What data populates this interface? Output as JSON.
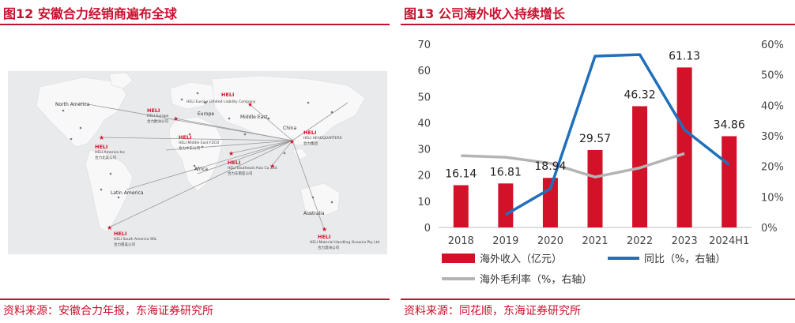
{
  "left": {
    "title": "图12  安徽合力经销商遍布全球",
    "source": "资料来源：安徽合力年报，东海证券研究所",
    "map": {
      "regions": [
        "North America",
        "Europe",
        "Middle East",
        "Africa",
        "Latin America",
        "Australia",
        "China"
      ],
      "brand": "HELI",
      "hubs": [
        {
          "en": "HELI Europe Limited Liability Company",
          "cn": ""
        },
        {
          "en": "HELI Europe",
          "cn": "合力欧洲公司"
        },
        {
          "en": "HELI America Inc",
          "cn": "合力北美公司"
        },
        {
          "en": "HELI Middle East FZCO",
          "cn": "合力中东公司"
        },
        {
          "en": "HELI HEADQUARTERS",
          "cn": "合力集团"
        },
        {
          "en": "HELI Southeast Asia Co.,Ltd.",
          "cn": "合力东南亚公司"
        },
        {
          "en": "HELI South America SRL",
          "cn": "合力南美公司"
        },
        {
          "en": "HELI Material Handling Oceania Pty Ltd",
          "cn": "合力澳洲公司"
        }
      ]
    }
  },
  "right": {
    "title": "图13  公司海外收入持续增长",
    "source": "资料来源：同花顺，东海证券研究所",
    "colors": {
      "bar": "#d3122a",
      "yoy": "#1f6fba",
      "margin": "#b4b4b4"
    },
    "chart_data": {
      "type": "bar",
      "categories": [
        "2018",
        "2019",
        "2020",
        "2021",
        "2022",
        "2023",
        "2024H1"
      ],
      "series": [
        {
          "name": "海外收入（亿元）",
          "type": "bar",
          "axis": "left",
          "values": [
            16.14,
            16.81,
            18.94,
            29.57,
            46.32,
            61.13,
            34.86
          ],
          "labels": [
            "16.14",
            "16.81",
            "18.94",
            "29.57",
            "46.32",
            "61.13",
            "34.86"
          ]
        },
        {
          "name": "同比（%，右轴）",
          "type": "line",
          "axis": "right",
          "values": [
            null,
            4.2,
            12.7,
            56.1,
            56.6,
            32.0,
            20.5
          ]
        },
        {
          "name": "海外毛利率（%，右轴）",
          "type": "line",
          "axis": "right",
          "values": [
            23.5,
            23.0,
            21.0,
            16.5,
            19.5,
            24.2,
            null
          ]
        }
      ],
      "ylim_left": [
        0,
        70
      ],
      "yticks_left": [
        "0",
        "10",
        "20",
        "30",
        "40",
        "50",
        "60",
        "70"
      ],
      "ylim_right": [
        0,
        60
      ],
      "yticks_right": [
        "0%",
        "10%",
        "20%",
        "30%",
        "40%",
        "50%",
        "60%"
      ],
      "grid": false,
      "legend": "bottom"
    }
  }
}
